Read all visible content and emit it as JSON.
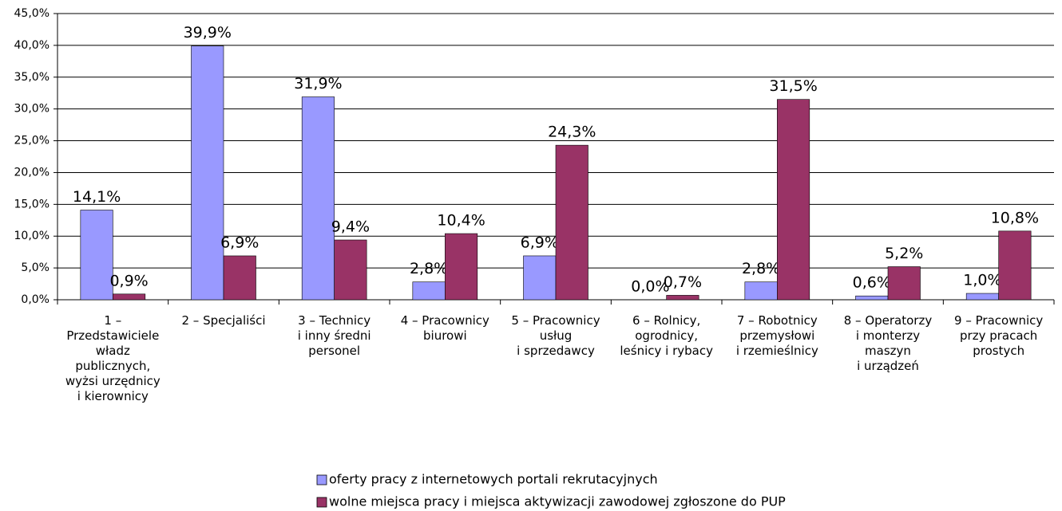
{
  "chart_data": {
    "type": "bar",
    "categories": [
      [
        "1 –",
        "Przedstawiciele",
        "władz",
        "publicznych,",
        "wyżsi urzędnicy",
        "i kierownicy"
      ],
      [
        "2 – Specjaliści"
      ],
      [
        "3 – Technicy",
        "i inny średni",
        "personel"
      ],
      [
        "4 – Pracownicy",
        "biurowi"
      ],
      [
        "5 – Pracownicy",
        "usług",
        "i sprzedawcy"
      ],
      [
        "6 – Rolnicy,",
        "ogrodnicy,",
        "leśnicy i rybacy"
      ],
      [
        "7 – Robotnicy",
        "przemysłowi",
        "i rzemieślnicy"
      ],
      [
        "8 – Operatorzy",
        "i monterzy",
        "maszyn",
        "i urządzeń"
      ],
      [
        "9 – Pracownicy",
        "przy pracach",
        "prostych"
      ]
    ],
    "series": [
      {
        "name": "oferty pracy z internetowych portali rekrutacyjnych",
        "color": "#9999ff",
        "values": [
          14.1,
          39.9,
          31.9,
          2.8,
          6.9,
          0.0,
          2.8,
          0.6,
          1.0
        ],
        "value_labels": [
          "14,1%",
          "39,9%",
          "31,9%",
          "2,8%",
          "6,9%",
          "0,0%",
          "2,8%",
          "0,6%",
          "1,0%"
        ]
      },
      {
        "name": "wolne miejsca pracy i miejsca aktywizacji zawodowej zgłoszone do PUP",
        "color": "#993366",
        "values": [
          0.9,
          6.9,
          9.4,
          10.4,
          24.3,
          0.7,
          31.5,
          5.2,
          10.8
        ],
        "value_labels": [
          "0,9%",
          "6,9%",
          "9,4%",
          "10,4%",
          "24,3%",
          "0,7%",
          "31,5%",
          "5,2%",
          "10,8%"
        ]
      }
    ],
    "ylim": [
      0,
      45
    ],
    "yticks": [
      {
        "value": 0,
        "label": "0,0%"
      },
      {
        "value": 5,
        "label": "5,0%"
      },
      {
        "value": 10,
        "label": "10,0%"
      },
      {
        "value": 15,
        "label": "15,0%"
      },
      {
        "value": 20,
        "label": "20,0%"
      },
      {
        "value": 25,
        "label": "25,0%"
      },
      {
        "value": 30,
        "label": "30,0%"
      },
      {
        "value": 35,
        "label": "35,0%"
      },
      {
        "value": 40,
        "label": "40,0%"
      },
      {
        "value": 45,
        "label": "45,0%"
      }
    ],
    "grid": true
  }
}
